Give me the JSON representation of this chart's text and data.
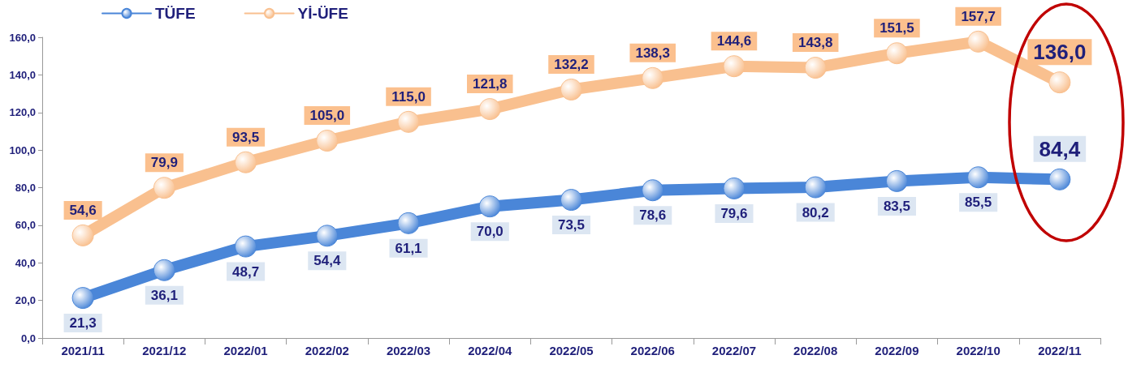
{
  "chart_data": {
    "type": "line",
    "categories": [
      "2021/11",
      "2021/12",
      "2022/01",
      "2022/02",
      "2022/03",
      "2022/04",
      "2022/05",
      "2022/06",
      "2022/07",
      "2022/08",
      "2022/09",
      "2022/10",
      "2022/11"
    ],
    "series": [
      {
        "name": "TÜFE",
        "color": "#4a86d8",
        "values": [
          21.3,
          36.1,
          48.7,
          54.4,
          61.1,
          70.0,
          73.5,
          78.6,
          79.6,
          80.2,
          83.5,
          85.5,
          84.4
        ],
        "value_labels": [
          "21,3",
          "36,1",
          "48,7",
          "54,4",
          "61,1",
          "70,0",
          "73,5",
          "78,6",
          "79,6",
          "80,2",
          "83,5",
          "85,5",
          "84,4"
        ]
      },
      {
        "name": "Yİ-ÜFE",
        "color": "#f9c08f",
        "values": [
          54.6,
          79.9,
          93.5,
          105.0,
          115.0,
          121.8,
          132.2,
          138.3,
          144.6,
          143.8,
          151.5,
          157.7,
          136.0
        ],
        "value_labels": [
          "54,6",
          "79,9",
          "93,5",
          "105,0",
          "115,0",
          "121,8",
          "132,2",
          "138,3",
          "144,6",
          "143,8",
          "151,5",
          "157,7",
          "136,0"
        ]
      }
    ],
    "ylim": [
      0,
      160
    ],
    "yticks": [
      {
        "value": 0,
        "label": "0,0"
      },
      {
        "value": 20,
        "label": "20,0"
      },
      {
        "value": 40,
        "label": "40,0"
      },
      {
        "value": 60,
        "label": "60,0"
      },
      {
        "value": 80,
        "label": "80,0"
      },
      {
        "value": 100,
        "label": "100,0"
      },
      {
        "value": 120,
        "label": "120,0"
      },
      {
        "value": 140,
        "label": "140,0"
      },
      {
        "value": 160,
        "label": "160,0"
      }
    ],
    "grid": false,
    "legend": "top left",
    "marker": "circle",
    "line_style": "solid"
  }
}
